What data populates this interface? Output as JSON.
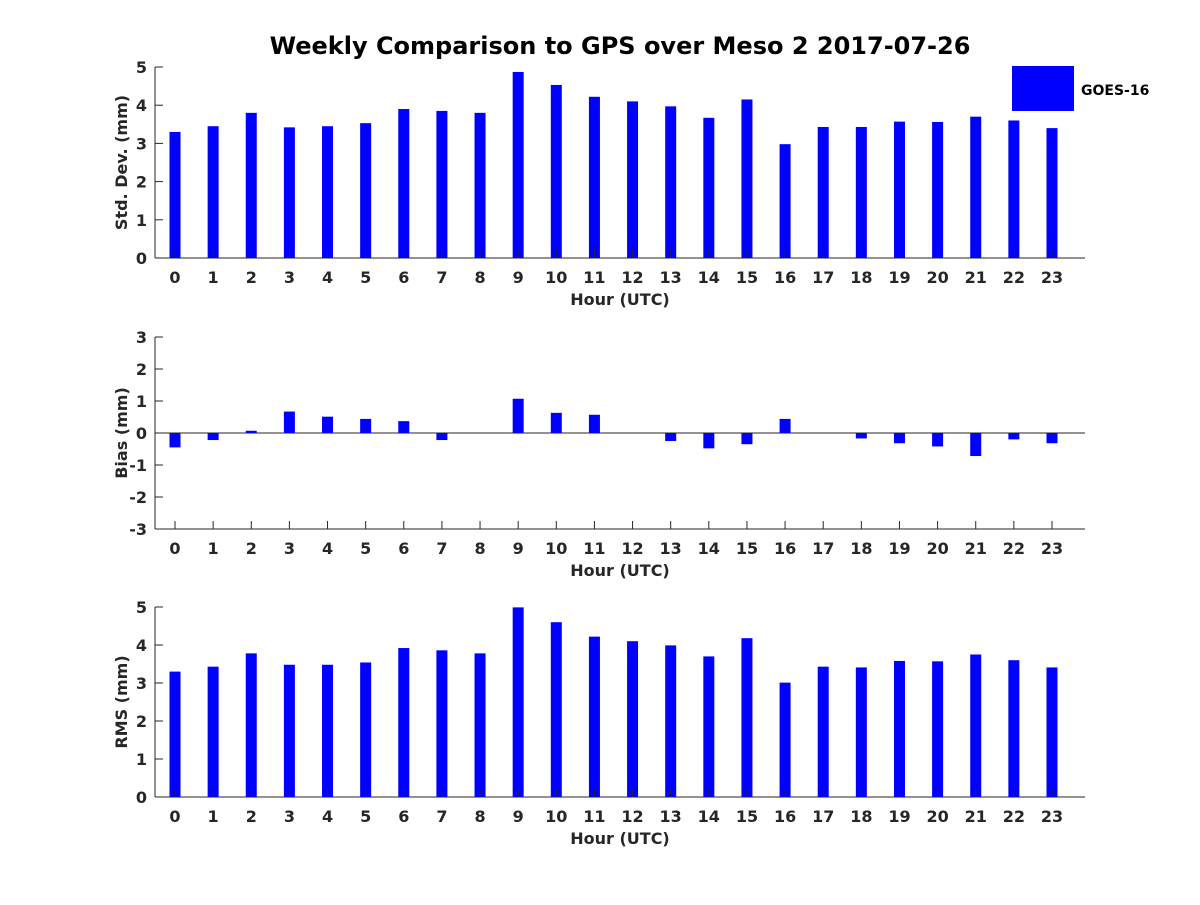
{
  "title": "Weekly Comparison to GPS over Meso 2 2017-07-26",
  "legend": {
    "label": "GOES-16",
    "color": "#0000ff"
  },
  "chart_data": [
    {
      "type": "bar",
      "id": "std",
      "categories": [
        "0",
        "1",
        "2",
        "3",
        "4",
        "5",
        "6",
        "7",
        "8",
        "9",
        "10",
        "11",
        "12",
        "13",
        "14",
        "15",
        "16",
        "17",
        "18",
        "19",
        "20",
        "21",
        "22",
        "23"
      ],
      "series": [
        {
          "name": "GOES-16",
          "values": [
            3.3,
            3.45,
            3.8,
            3.42,
            3.45,
            3.53,
            3.9,
            3.85,
            3.8,
            4.87,
            4.53,
            4.22,
            4.1,
            3.97,
            3.67,
            4.15,
            2.98,
            3.43,
            3.43,
            3.57,
            3.56,
            3.7,
            3.6,
            3.4
          ]
        }
      ],
      "xlabel": "Hour (UTC)",
      "ylabel": "Std. Dev. (mm)",
      "ylim": [
        0,
        5
      ],
      "yticks": [
        "0",
        "1",
        "2",
        "3",
        "4",
        "5"
      ],
      "color": "#0000ff"
    },
    {
      "type": "bar",
      "id": "bias",
      "categories": [
        "0",
        "1",
        "2",
        "3",
        "4",
        "5",
        "6",
        "7",
        "8",
        "9",
        "10",
        "11",
        "12",
        "13",
        "14",
        "15",
        "16",
        "17",
        "18",
        "19",
        "20",
        "21",
        "22",
        "23"
      ],
      "series": [
        {
          "name": "GOES-16",
          "values": [
            -0.45,
            -0.22,
            0.07,
            0.67,
            0.51,
            0.44,
            0.37,
            -0.22,
            0.0,
            1.07,
            0.63,
            0.57,
            0.0,
            -0.25,
            -0.48,
            -0.35,
            0.44,
            0.0,
            -0.17,
            -0.32,
            -0.42,
            -0.72,
            -0.2,
            -0.32
          ]
        }
      ],
      "xlabel": "Hour (UTC)",
      "ylabel": "Bias (mm)",
      "ylim": [
        -3,
        3
      ],
      "yticks": [
        "-3",
        "-2",
        "-1",
        "0",
        "1",
        "2",
        "3"
      ],
      "color": "#0000ff"
    },
    {
      "type": "bar",
      "id": "rms",
      "categories": [
        "0",
        "1",
        "2",
        "3",
        "4",
        "5",
        "6",
        "7",
        "8",
        "9",
        "10",
        "11",
        "12",
        "13",
        "14",
        "15",
        "16",
        "17",
        "18",
        "19",
        "20",
        "21",
        "22",
        "23"
      ],
      "series": [
        {
          "name": "GOES-16",
          "values": [
            3.3,
            3.43,
            3.78,
            3.48,
            3.48,
            3.54,
            3.92,
            3.86,
            3.78,
            4.99,
            4.6,
            4.22,
            4.1,
            3.99,
            3.7,
            4.18,
            3.01,
            3.43,
            3.41,
            3.58,
            3.57,
            3.75,
            3.6,
            3.41
          ]
        }
      ],
      "xlabel": "Hour (UTC)",
      "ylabel": "RMS (mm)",
      "ylim": [
        0,
        5
      ],
      "yticks": [
        "0",
        "1",
        "2",
        "3",
        "4",
        "5"
      ],
      "color": "#0000ff"
    }
  ]
}
